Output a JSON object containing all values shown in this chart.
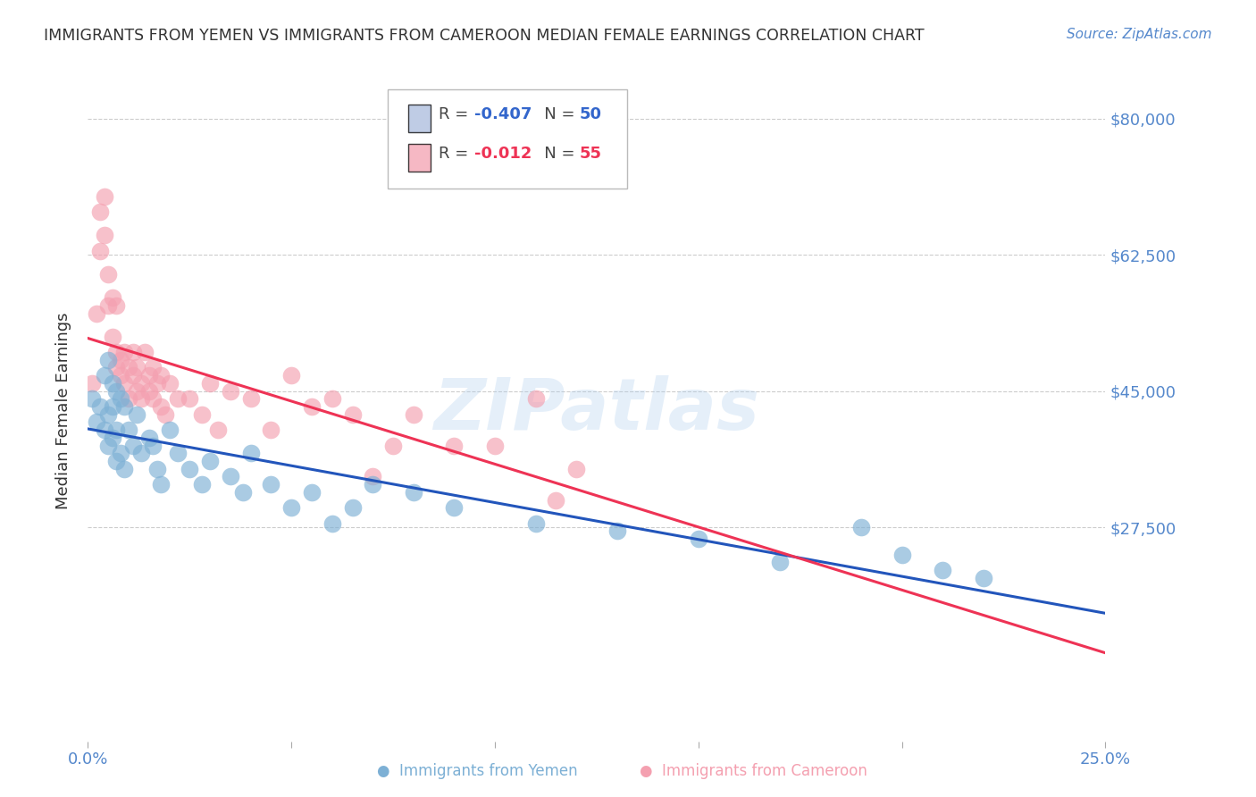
{
  "title": "IMMIGRANTS FROM YEMEN VS IMMIGRANTS FROM CAMEROON MEDIAN FEMALE EARNINGS CORRELATION CHART",
  "source": "Source: ZipAtlas.com",
  "ylabel": "Median Female Earnings",
  "yticks": [
    0,
    27500,
    45000,
    62500,
    80000
  ],
  "ytick_labels": [
    "",
    "$27,500",
    "$45,000",
    "$62,500",
    "$80,000"
  ],
  "xlim": [
    0.0,
    0.25
  ],
  "ylim": [
    0,
    85000
  ],
  "watermark": "ZIPatlas",
  "yemen_color": "#7db0d5",
  "cameroon_color": "#f4a0b0",
  "yemen_line_color": "#2255bb",
  "cameroon_line_color": "#ee3355",
  "background_color": "#ffffff",
  "grid_color": "#cccccc",
  "title_color": "#333333",
  "axis_label_color": "#5588cc",
  "yemen_scatter_x": [
    0.001,
    0.002,
    0.003,
    0.004,
    0.004,
    0.005,
    0.005,
    0.005,
    0.006,
    0.006,
    0.006,
    0.007,
    0.007,
    0.007,
    0.008,
    0.008,
    0.009,
    0.009,
    0.01,
    0.011,
    0.012,
    0.013,
    0.015,
    0.016,
    0.017,
    0.018,
    0.02,
    0.022,
    0.025,
    0.028,
    0.03,
    0.035,
    0.038,
    0.04,
    0.045,
    0.05,
    0.055,
    0.06,
    0.065,
    0.07,
    0.08,
    0.09,
    0.11,
    0.13,
    0.15,
    0.17,
    0.19,
    0.2,
    0.21,
    0.22
  ],
  "yemen_scatter_y": [
    44000,
    41000,
    43000,
    47000,
    40000,
    49000,
    42000,
    38000,
    46000,
    43000,
    39000,
    45000,
    40000,
    36000,
    44000,
    37000,
    43000,
    35000,
    40000,
    38000,
    42000,
    37000,
    39000,
    38000,
    35000,
    33000,
    40000,
    37000,
    35000,
    33000,
    36000,
    34000,
    32000,
    37000,
    33000,
    30000,
    32000,
    28000,
    30000,
    33000,
    32000,
    30000,
    28000,
    27000,
    26000,
    23000,
    27500,
    24000,
    22000,
    21000
  ],
  "cameroon_scatter_x": [
    0.001,
    0.002,
    0.003,
    0.003,
    0.004,
    0.004,
    0.005,
    0.005,
    0.006,
    0.006,
    0.007,
    0.007,
    0.007,
    0.008,
    0.008,
    0.009,
    0.009,
    0.01,
    0.01,
    0.011,
    0.011,
    0.012,
    0.012,
    0.013,
    0.013,
    0.014,
    0.015,
    0.015,
    0.016,
    0.016,
    0.017,
    0.018,
    0.018,
    0.019,
    0.02,
    0.022,
    0.025,
    0.028,
    0.03,
    0.032,
    0.035,
    0.04,
    0.045,
    0.05,
    0.055,
    0.06,
    0.065,
    0.07,
    0.075,
    0.08,
    0.09,
    0.1,
    0.11,
    0.115,
    0.12
  ],
  "cameroon_scatter_y": [
    46000,
    55000,
    63000,
    68000,
    65000,
    70000,
    56000,
    60000,
    57000,
    52000,
    56000,
    48000,
    50000,
    49000,
    47000,
    46000,
    50000,
    44000,
    48000,
    47000,
    50000,
    45000,
    48000,
    44000,
    46000,
    50000,
    47000,
    45000,
    48000,
    44000,
    46000,
    43000,
    47000,
    42000,
    46000,
    44000,
    44000,
    42000,
    46000,
    40000,
    45000,
    44000,
    40000,
    47000,
    43000,
    44000,
    42000,
    34000,
    38000,
    42000,
    38000,
    38000,
    44000,
    31000,
    35000
  ]
}
